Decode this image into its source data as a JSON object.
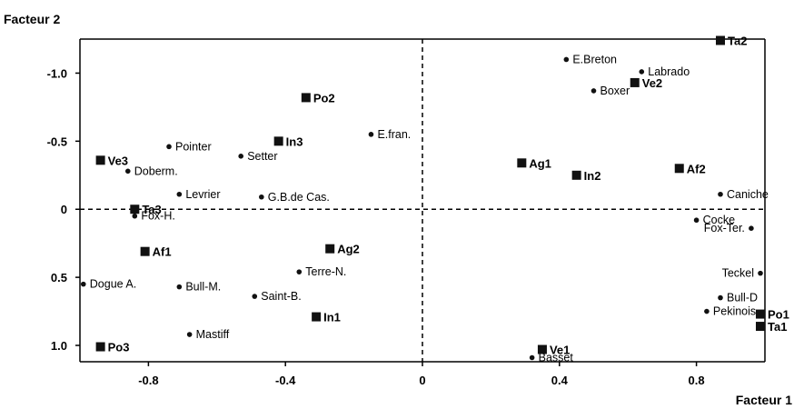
{
  "chart_data": {
    "type": "scatter",
    "xlabel": "Facteur 1",
    "ylabel": "Facteur 2",
    "xlim": [
      -1.0,
      1.0
    ],
    "ylim": [
      -1.25,
      1.12
    ],
    "y_axis_inverted": true,
    "x_ticks": [
      {
        "value": -0.8,
        "label": "-0.8"
      },
      {
        "value": -0.4,
        "label": "-0.4"
      },
      {
        "value": 0,
        "label": "0"
      },
      {
        "value": 0.4,
        "label": "0.4"
      },
      {
        "value": 0.8,
        "label": "0.8"
      }
    ],
    "y_ticks": [
      {
        "value": -1.0,
        "label": "-1.0"
      },
      {
        "value": -0.5,
        "label": "-0.5"
      },
      {
        "value": 0,
        "label": "0"
      },
      {
        "value": 0.5,
        "label": "0.5"
      },
      {
        "value": 1.0,
        "label": "1.0"
      }
    ],
    "zero_lines": true,
    "series": [
      {
        "marker": "dot",
        "points": [
          {
            "label": "Pointer",
            "x": -0.74,
            "y": -0.46
          },
          {
            "label": "Setter",
            "x": -0.53,
            "y": -0.39
          },
          {
            "label": "Doberm.",
            "x": -0.86,
            "y": -0.28
          },
          {
            "label": "Levrier",
            "x": -0.71,
            "y": -0.11
          },
          {
            "label": "G.B.de Cas.",
            "x": -0.47,
            "y": -0.09
          },
          {
            "label": "Fox-H.",
            "x": -0.84,
            "y": 0.05
          },
          {
            "label": "E.fran.",
            "x": -0.15,
            "y": -0.55
          },
          {
            "label": "Terre-N.",
            "x": -0.36,
            "y": 0.46
          },
          {
            "label": "Dogue A.",
            "x": -0.99,
            "y": 0.55
          },
          {
            "label": "Bull-M.",
            "x": -0.71,
            "y": 0.57
          },
          {
            "label": "Saint-B.",
            "x": -0.49,
            "y": 0.64
          },
          {
            "label": "Mastiff",
            "x": -0.68,
            "y": 0.92
          },
          {
            "label": "E.Breton",
            "x": 0.42,
            "y": -1.1
          },
          {
            "label": "Labrado",
            "x": 0.64,
            "y": -1.01
          },
          {
            "label": "Boxer",
            "x": 0.5,
            "y": -0.87
          },
          {
            "label": "Caniche",
            "x": 0.87,
            "y": -0.11
          },
          {
            "label": "Cocke",
            "x": 0.8,
            "y": 0.08
          },
          {
            "label": "Fox-Ter.",
            "x": 0.96,
            "y": 0.14
          },
          {
            "label": "Teckel",
            "x": 1.01,
            "y": 0.47
          },
          {
            "label": "Bull-D",
            "x": 0.87,
            "y": 0.65
          },
          {
            "label": "Pekinois",
            "x": 0.83,
            "y": 0.75
          },
          {
            "label": "Basset",
            "x": 0.32,
            "y": 1.09
          }
        ]
      },
      {
        "marker": "square",
        "points": [
          {
            "label": "Ta2",
            "x": 0.87,
            "y": -1.24
          },
          {
            "label": "Po2",
            "x": -0.34,
            "y": -0.82
          },
          {
            "label": "In3",
            "x": -0.42,
            "y": -0.5
          },
          {
            "label": "Ve3",
            "x": -0.94,
            "y": -0.36
          },
          {
            "label": "Ag1",
            "x": 0.29,
            "y": -0.34
          },
          {
            "label": "In2",
            "x": 0.45,
            "y": -0.25
          },
          {
            "label": "Af2",
            "x": 0.75,
            "y": -0.3
          },
          {
            "label": "Ve2",
            "x": 0.62,
            "y": -0.93
          },
          {
            "label": "Ta3",
            "x": -0.84,
            "y": 0.0
          },
          {
            "label": "Af1",
            "x": -0.81,
            "y": 0.31
          },
          {
            "label": "Ag2",
            "x": -0.27,
            "y": 0.29
          },
          {
            "label": "In1",
            "x": -0.31,
            "y": 0.79
          },
          {
            "label": "Po3",
            "x": -0.94,
            "y": 1.01
          },
          {
            "label": "Ve1",
            "x": 0.35,
            "y": 1.03
          },
          {
            "label": "Po1",
            "x": 1.17,
            "y": 0.77
          },
          {
            "label": "Ta1",
            "x": 1.17,
            "y": 0.86
          }
        ]
      }
    ]
  }
}
